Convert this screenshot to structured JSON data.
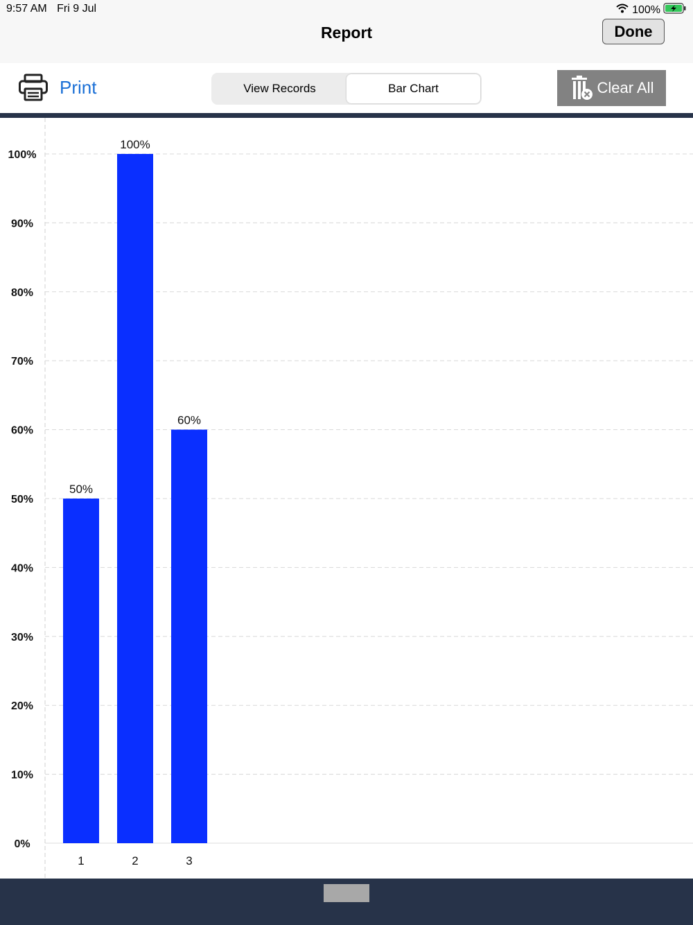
{
  "status_bar": {
    "time": "9:57 AM",
    "date": "Fri 9 Jul",
    "battery": "100%",
    "icons": [
      "wifi-icon",
      "battery-charging-icon"
    ]
  },
  "nav": {
    "title": "Report",
    "done_label": "Done"
  },
  "toolbar": {
    "print_label": "Print",
    "print_icon": "printer-icon",
    "segments": [
      "View Records",
      "Bar Chart"
    ],
    "active_segment": "Bar Chart",
    "clear_all_label": "Clear All",
    "clear_all_icon": "trash-clear-icon"
  },
  "colors": {
    "bar": "#0a2fff",
    "link": "#1a6fd6",
    "dark_bar": "#273349",
    "clear_button": "#828282"
  },
  "chart_data": {
    "type": "bar",
    "categories": [
      "1",
      "2",
      "3"
    ],
    "values": [
      50,
      100,
      60
    ],
    "value_labels": [
      "50%",
      "100%",
      "60%"
    ],
    "yticks": [
      "0%",
      "10%",
      "20%",
      "30%",
      "40%",
      "50%",
      "60%",
      "70%",
      "80%",
      "90%",
      "100%"
    ],
    "ylim": [
      0,
      100
    ],
    "grid": true,
    "legend": "none"
  }
}
